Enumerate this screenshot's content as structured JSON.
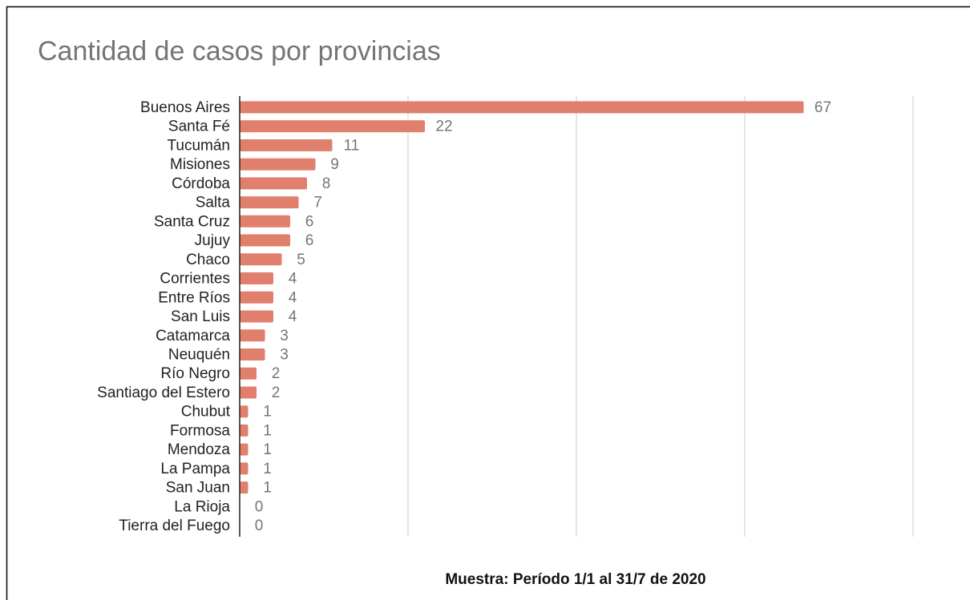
{
  "chart_data": {
    "type": "bar",
    "orientation": "horizontal",
    "title": "Cantidad de casos por provincias",
    "note": "Muestra: Período 1/1 al 31/7 de 2020",
    "categories": [
      "Buenos Aires",
      "Santa Fé",
      "Tucumán",
      "Misiones",
      "Córdoba",
      "Salta",
      "Santa Cruz",
      "Jujuy",
      "Chaco",
      "Corrientes",
      "Entre Ríos",
      "San Luis",
      "Catamarca",
      "Neuquén",
      "Río Negro",
      "Santiago del Estero",
      "Chubut",
      "Formosa",
      "Mendoza",
      "La Pampa",
      "San Juan",
      "La Rioja",
      "Tierra del Fuego"
    ],
    "values": [
      67,
      22,
      11,
      9,
      8,
      7,
      6,
      6,
      5,
      4,
      4,
      4,
      3,
      3,
      2,
      2,
      1,
      1,
      1,
      1,
      1,
      0,
      0
    ],
    "color": "#e07f6c",
    "xlim": [
      0,
      80
    ],
    "xticks": [
      0,
      20,
      40,
      60,
      80
    ],
    "grid": true
  }
}
